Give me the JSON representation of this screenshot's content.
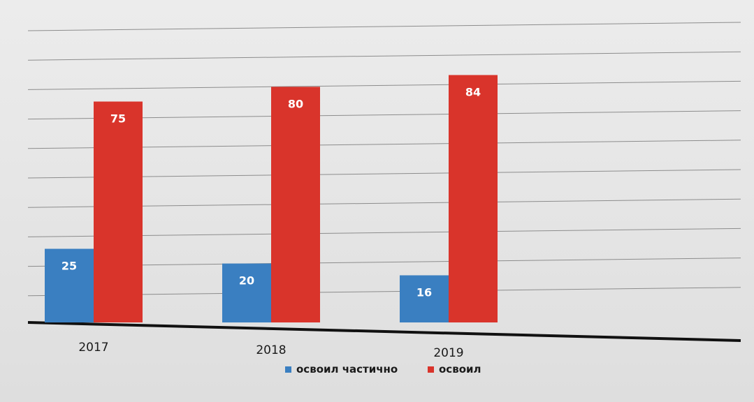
{
  "chart_data": {
    "type": "bar",
    "title": "",
    "categories": [
      "2017",
      "2018",
      "2019"
    ],
    "series": [
      {
        "name": "освоил частично",
        "color": "#3a7fc1",
        "values": [
          25,
          20,
          16
        ]
      },
      {
        "name": "освоил",
        "color": "#d9342b",
        "values": [
          75,
          80,
          84
        ]
      }
    ],
    "ylim": [
      0,
      100
    ],
    "grid": true,
    "legend_position": "bottom"
  }
}
